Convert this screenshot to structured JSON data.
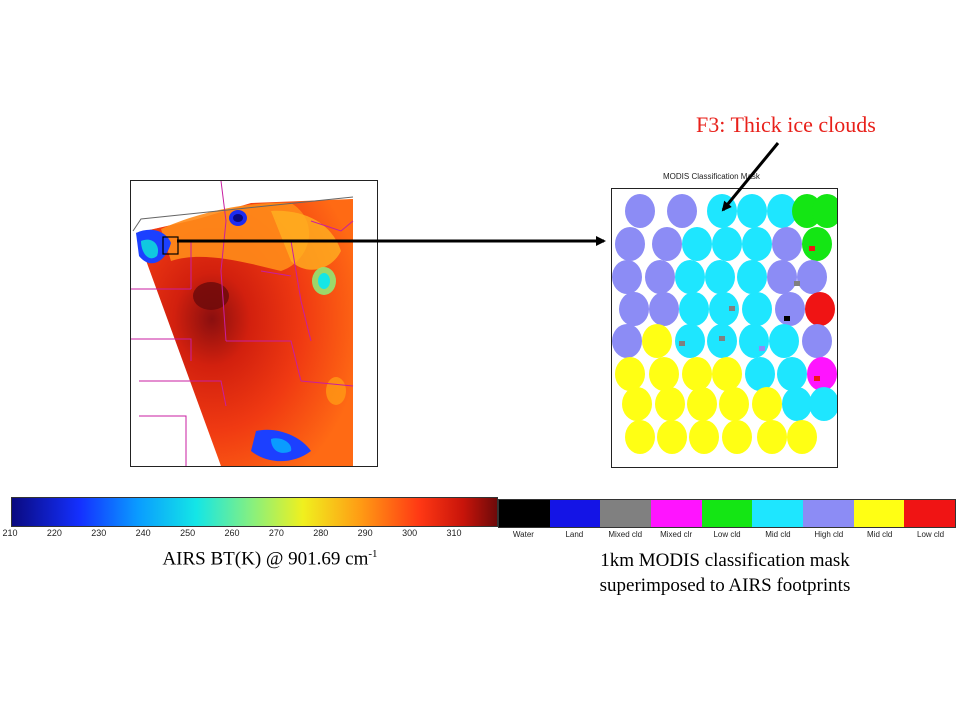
{
  "annotation": {
    "text": "F3: Thick ice clouds",
    "color": "#e8201a"
  },
  "mask_panel": {
    "title": "MODIS Classification Mask"
  },
  "bt_colorbar": {
    "ticks": [
      "210",
      "220",
      "230",
      "240",
      "250",
      "260",
      "270",
      "280",
      "290",
      "300",
      "310"
    ]
  },
  "class_legend": [
    {
      "label": "Water",
      "color": "#000000"
    },
    {
      "label": "Land",
      "color": "#1414e6"
    },
    {
      "label": "Mixed cld",
      "color": "#808080"
    },
    {
      "label": "Mixed clr",
      "color": "#ff14ff"
    },
    {
      "label": "Low cld",
      "color": "#14e614"
    },
    {
      "label": "Mid cld",
      "color": "#1ee6ff"
    },
    {
      "label": "High cld",
      "color": "#8c8cf5"
    },
    {
      "label": "Mid cld",
      "color": "#ffff14"
    },
    {
      "label": "Low cld",
      "color": "#f01414"
    }
  ],
  "captions": {
    "left_main": "AIRS BT(K) @ 901.69 cm",
    "left_sup": "-1",
    "right_line1": "1km MODIS classification mask",
    "right_line2": "superimposed to AIRS footprints"
  }
}
